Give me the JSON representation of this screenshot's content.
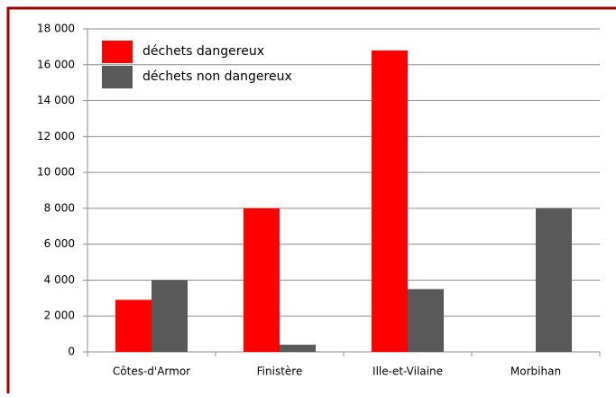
{
  "chart_data": {
    "type": "bar",
    "categories": [
      "Côtes-d'Armor",
      "Finistère",
      "Ille-et-Vilaine",
      "Morbihan"
    ],
    "series": [
      {
        "name": "déchets dangereux",
        "color": "#ff0000",
        "values": [
          2900,
          8000,
          16800,
          0
        ]
      },
      {
        "name": "déchets non dangereux",
        "color": "#595959",
        "values": [
          4000,
          400,
          3500,
          8000
        ]
      }
    ],
    "ylim": [
      0,
      18000
    ],
    "yticks": [
      0,
      {
        "value": 2000,
        "label": "2 000"
      },
      {
        "value": 4000,
        "label": "4 000"
      },
      {
        "value": 6000,
        "label": "6 000"
      },
      {
        "value": 8000,
        "label": "8 000"
      },
      {
        "value": 10000,
        "label": "10 000"
      },
      {
        "value": 12000,
        "label": "12 000"
      },
      {
        "value": 14000,
        "label": "14 000"
      },
      {
        "value": 16000,
        "label": "16 000"
      },
      {
        "value": 18000,
        "label": "18 000"
      }
    ],
    "grid": true,
    "legend": "top-left"
  }
}
